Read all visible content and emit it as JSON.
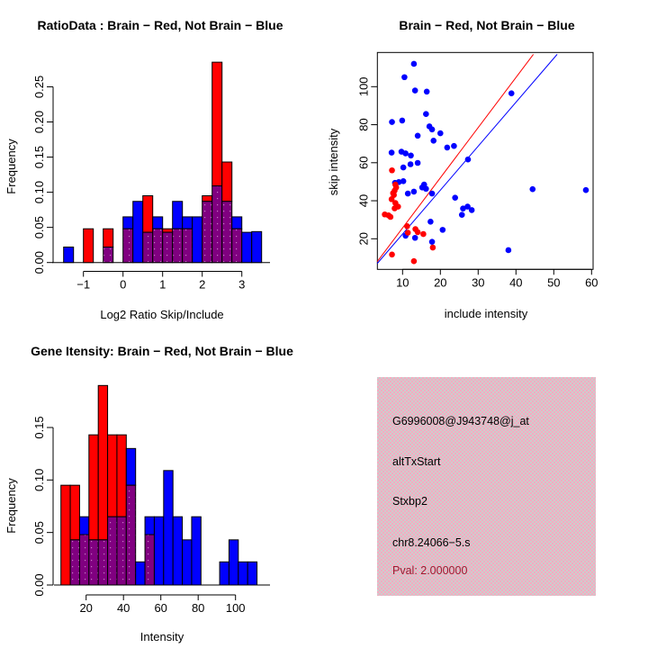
{
  "figure": {
    "background": "#ffffff"
  },
  "colors": {
    "red": "#ff0000",
    "blue": "#0000ff",
    "overlap_purple": "#800080",
    "overlap_dot": "#c878c8",
    "axis_black": "#000000",
    "info_box_pink": "#f4abc1",
    "info_box_gray": "#cdcdcd",
    "pval_red": "#9b1b30"
  },
  "chart_data": [
    {
      "id": "ratio_hist",
      "type": "bar",
      "subtype": "overlapping-histogram",
      "title": "RatioData : Brain − Red, Not Brain − Blue",
      "xlabel": "Log2 Ratio Skip/Include",
      "ylabel": "Frequency",
      "xlim": [
        -1.75,
        3.6
      ],
      "ylim": [
        0,
        0.285
      ],
      "grid": false,
      "xticks": [
        -1,
        0,
        1,
        2,
        3
      ],
      "xtick_labels": [
        "−1",
        "0",
        "1",
        "2",
        "3"
      ],
      "yticks": [
        0,
        0.05,
        0.1,
        0.15,
        0.2,
        0.25
      ],
      "ytick_labels": [
        "0.00",
        "0.05",
        "0.10",
        "0.15",
        "0.20",
        "0.25"
      ],
      "bin_width": 0.25,
      "series_note": "red = Brain frequency, blue = Not Brain frequency, purple = overlap",
      "bins": [
        {
          "x": -1.5,
          "red": 0,
          "blue": 0.022
        },
        {
          "x": -1.0,
          "red": 0.048,
          "blue": 0
        },
        {
          "x": -0.5,
          "red": 0.048,
          "blue": 0.022
        },
        {
          "x": 0.0,
          "red": 0.048,
          "blue": 0.065
        },
        {
          "x": 0.25,
          "red": 0,
          "blue": 0.087
        },
        {
          "x": 0.5,
          "red": 0.095,
          "blue": 0.043
        },
        {
          "x": 0.75,
          "red": 0.048,
          "blue": 0.065
        },
        {
          "x": 1.0,
          "red": 0.048,
          "blue": 0.043
        },
        {
          "x": 1.25,
          "red": 0.048,
          "blue": 0.087
        },
        {
          "x": 1.5,
          "red": 0.048,
          "blue": 0.065
        },
        {
          "x": 1.75,
          "red": 0,
          "blue": 0.065
        },
        {
          "x": 2.0,
          "red": 0.095,
          "blue": 0.087
        },
        {
          "x": 2.25,
          "red": 0.285,
          "blue": 0.109
        },
        {
          "x": 2.5,
          "red": 0.143,
          "blue": 0.087
        },
        {
          "x": 2.75,
          "red": 0.048,
          "blue": 0.065
        },
        {
          "x": 3.0,
          "red": 0,
          "blue": 0.043
        },
        {
          "x": 3.25,
          "red": 0,
          "blue": 0.044
        }
      ]
    },
    {
      "id": "intensity_scatter",
      "type": "scatter",
      "title": "Brain − Red, Not Brain − Blue",
      "xlabel": "include intensity",
      "ylabel": "skip intensity",
      "xlim": [
        3.3,
        60.4
      ],
      "ylim": [
        4,
        117
      ],
      "grid": false,
      "xticks": [
        10,
        20,
        30,
        40,
        50,
        60
      ],
      "xtick_labels": [
        "10",
        "20",
        "30",
        "40",
        "50",
        "60"
      ],
      "yticks": [
        20,
        40,
        60,
        80,
        100
      ],
      "ytick_labels": [
        "20",
        "40",
        "60",
        "80",
        "100"
      ],
      "red_line": {
        "x1": 3.3,
        "y1": 8,
        "x2": 44.6,
        "y2": 117
      },
      "blue_line": {
        "x1": 3.3,
        "y1": 7,
        "x2": 50.9,
        "y2": 117
      },
      "red_points": [
        [
          7.2,
          56
        ],
        [
          8.1,
          48.5
        ],
        [
          8.3,
          47
        ],
        [
          7.9,
          45.3
        ],
        [
          7.7,
          43
        ],
        [
          7.5,
          44
        ],
        [
          7.1,
          40.8
        ],
        [
          8.1,
          38.8
        ],
        [
          8.8,
          36.9
        ],
        [
          7.9,
          36
        ],
        [
          5.3,
          32.8
        ],
        [
          6.3,
          32.3
        ],
        [
          6.8,
          31.5
        ],
        [
          11.2,
          26.6
        ],
        [
          13.4,
          25.1
        ],
        [
          11.4,
          23.2
        ],
        [
          14,
          23.5
        ],
        [
          15.5,
          22.5
        ],
        [
          18,
          15.4
        ],
        [
          7.2,
          11.7
        ],
        [
          13,
          8.2
        ]
      ],
      "blue_points": [
        [
          13,
          112
        ],
        [
          10.5,
          105
        ],
        [
          13.3,
          98
        ],
        [
          16.4,
          97.4
        ],
        [
          38.8,
          96.5
        ],
        [
          16.2,
          85.6
        ],
        [
          7.2,
          81.4
        ],
        [
          9.9,
          82.2
        ],
        [
          17.1,
          79.1
        ],
        [
          17.8,
          77.5
        ],
        [
          20,
          75.5
        ],
        [
          14,
          74.2
        ],
        [
          18.2,
          71.6
        ],
        [
          21.8,
          68
        ],
        [
          23.6,
          68.8
        ],
        [
          7.1,
          65.3
        ],
        [
          9.7,
          65.8
        ],
        [
          10.8,
          64.9
        ],
        [
          12.2,
          63.8
        ],
        [
          27.3,
          61.7
        ],
        [
          14,
          59.9
        ],
        [
          10.2,
          57.5
        ],
        [
          12.1,
          59.2
        ],
        [
          8,
          49.4
        ],
        [
          10.2,
          50.3
        ],
        [
          15.7,
          48.5
        ],
        [
          9,
          49.8
        ],
        [
          11.4,
          43.8
        ],
        [
          13,
          44.8
        ],
        [
          16.2,
          46.3
        ],
        [
          17.8,
          43.8
        ],
        [
          15.2,
          47
        ],
        [
          44.4,
          46.1
        ],
        [
          58.5,
          45.6
        ],
        [
          23.9,
          41.6
        ],
        [
          26,
          35.9
        ],
        [
          27.2,
          36.9
        ],
        [
          28.3,
          35.1
        ],
        [
          25.7,
          32.6
        ],
        [
          17.4,
          29
        ],
        [
          20.6,
          24.7
        ],
        [
          10.8,
          21.6
        ],
        [
          13.3,
          20.5
        ],
        [
          17.8,
          18.4
        ],
        [
          38,
          14
        ]
      ]
    },
    {
      "id": "gene_intensity_hist",
      "type": "bar",
      "subtype": "overlapping-histogram",
      "title": "Gene Itensity: Brain − Red, Not Brain − Blue",
      "xlabel": "Intensity",
      "ylabel": "Frequency",
      "xlim": [
        3.5,
        117
      ],
      "ylim": [
        0,
        0.19
      ],
      "grid": false,
      "xticks": [
        20,
        40,
        60,
        80,
        100
      ],
      "xtick_labels": [
        "20",
        "40",
        "60",
        "80",
        "100"
      ],
      "yticks": [
        0,
        0.05,
        0.1,
        0.15
      ],
      "ytick_labels": [
        "0.00",
        "0.05",
        "0.10",
        "0.15"
      ],
      "bin_width": 5,
      "series_note": "red = Brain frequency, blue = Not Brain frequency, purple = overlap",
      "bins": [
        {
          "x": 6.5,
          "red": 0.095,
          "blue": 0
        },
        {
          "x": 11.5,
          "red": 0.095,
          "blue": 0.043
        },
        {
          "x": 16.5,
          "red": 0.048,
          "blue": 0.065
        },
        {
          "x": 21.5,
          "red": 0.143,
          "blue": 0.043
        },
        {
          "x": 26.5,
          "red": 0.19,
          "blue": 0.043
        },
        {
          "x": 31.5,
          "red": 0.143,
          "blue": 0.065
        },
        {
          "x": 36.5,
          "red": 0.143,
          "blue": 0.065
        },
        {
          "x": 41.5,
          "red": 0.095,
          "blue": 0.13
        },
        {
          "x": 46.5,
          "red": 0,
          "blue": 0.022
        },
        {
          "x": 51.5,
          "red": 0.048,
          "blue": 0.065
        },
        {
          "x": 56.5,
          "red": 0,
          "blue": 0.065
        },
        {
          "x": 61.5,
          "red": 0,
          "blue": 0.109
        },
        {
          "x": 66.5,
          "red": 0,
          "blue": 0.065
        },
        {
          "x": 71.5,
          "red": 0,
          "blue": 0.043
        },
        {
          "x": 76.5,
          "red": 0,
          "blue": 0.065
        },
        {
          "x": 91.5,
          "red": 0,
          "blue": 0.022
        },
        {
          "x": 96.5,
          "red": 0,
          "blue": 0.043
        },
        {
          "x": 101.5,
          "red": 0,
          "blue": 0.022
        },
        {
          "x": 106.5,
          "red": 0,
          "blue": 0.022
        }
      ]
    }
  ],
  "info_box": {
    "lines": [
      {
        "text": "G6996008@J943748@j_at",
        "color": "#000000"
      },
      {
        "text": "altTxStart",
        "color": "#000000"
      },
      {
        "text": "Stxbp2",
        "color": "#000000"
      },
      {
        "text": "chr8.24066−5.s",
        "color": "#000000"
      },
      {
        "text": "Pval: 2.000000",
        "color": "#9b1b30"
      }
    ]
  }
}
